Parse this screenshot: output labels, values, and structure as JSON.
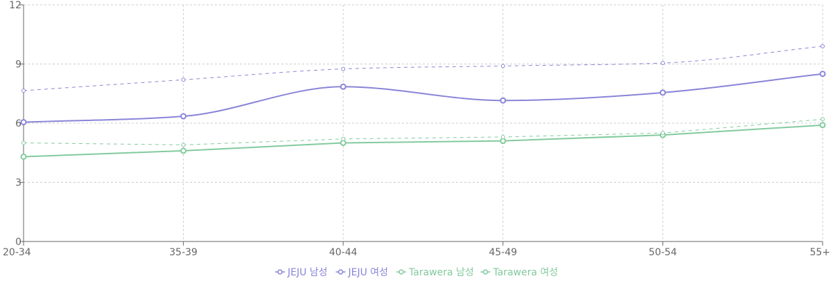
{
  "chart_data": {
    "type": "line",
    "categories": [
      "20-34",
      "35-39",
      "40-44",
      "45-49",
      "50-54",
      "55+"
    ],
    "y_ticks": [
      "0",
      "3",
      "6",
      "9",
      "12"
    ],
    "ylim": [
      0,
      12
    ],
    "grid": true,
    "legend_position": "bottom",
    "series": [
      {
        "name": "JEJU 남성",
        "color": "#8884d8",
        "style": "solid",
        "curve": "monotone",
        "values": [
          6.05,
          6.35,
          7.85,
          7.15,
          7.55,
          8.5
        ]
      },
      {
        "name": "JEJU 여성",
        "color": "#8884d8",
        "style": "dashed",
        "curve": "monotone",
        "values": [
          7.65,
          8.2,
          8.75,
          8.9,
          9.05,
          9.9
        ]
      },
      {
        "name": "Tarawera 남성",
        "color": "#82ca9d",
        "style": "solid",
        "curve": "linear",
        "values": [
          4.3,
          4.6,
          5.0,
          5.1,
          5.4,
          5.9
        ]
      },
      {
        "name": "Tarawera 여성",
        "color": "#82ca9d",
        "style": "dashed",
        "curve": "linear",
        "values": [
          5.0,
          4.9,
          5.2,
          5.3,
          5.5,
          6.2
        ]
      }
    ]
  }
}
